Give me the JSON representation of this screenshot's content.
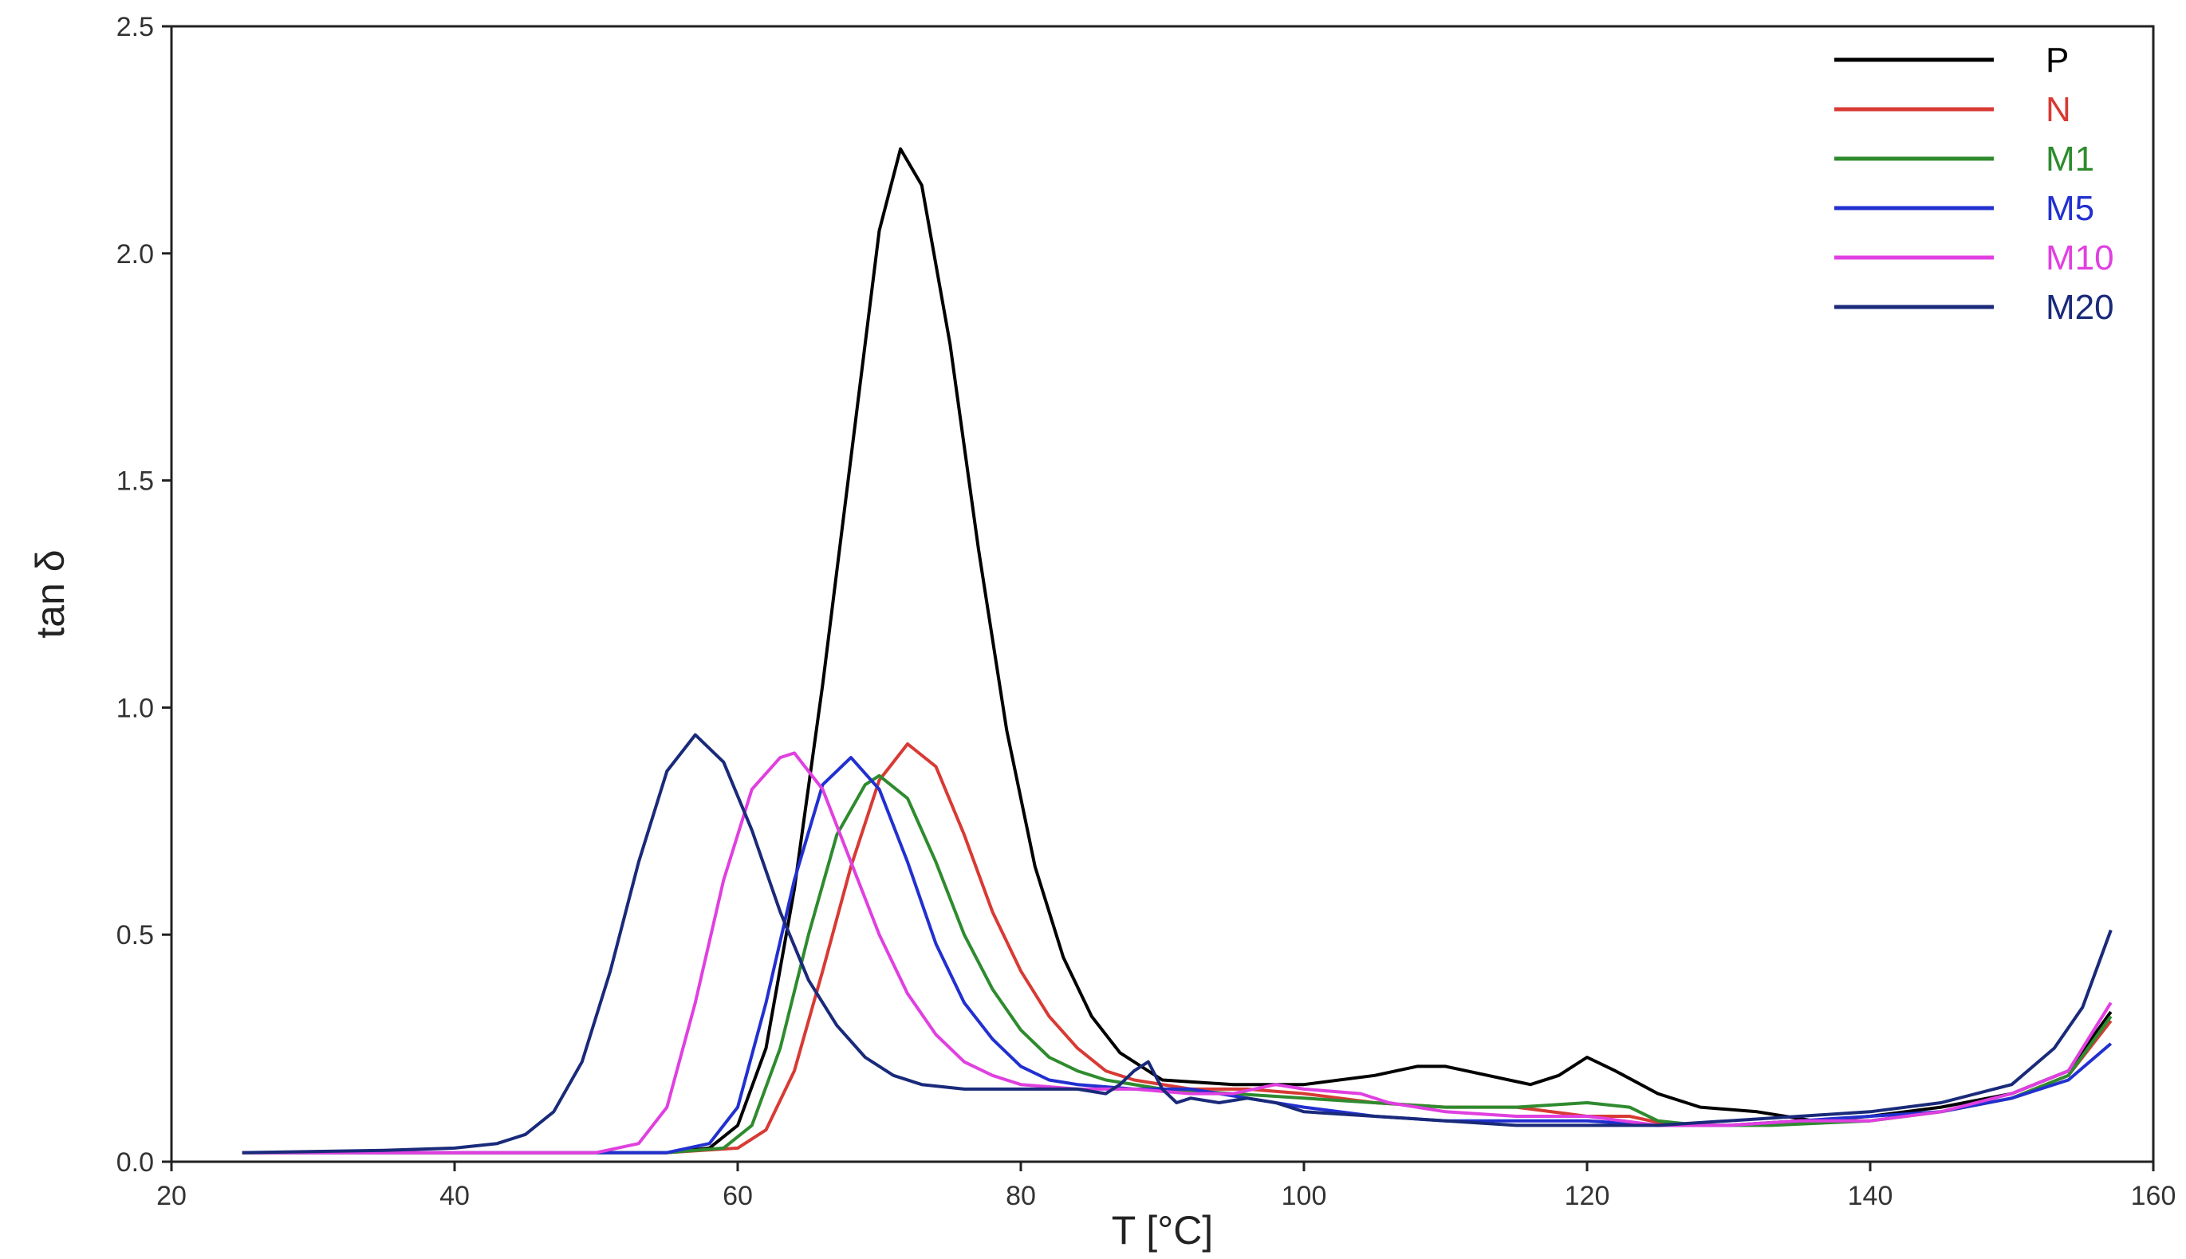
{
  "chart_data": {
    "type": "line",
    "xlabel": "T [°C]",
    "ylabel": "tan δ",
    "xlim": [
      20,
      160
    ],
    "ylim": [
      0,
      2.5
    ],
    "xticks": [
      20,
      40,
      60,
      80,
      100,
      120,
      140,
      160
    ],
    "yticks": [
      0.0,
      0.5,
      1.0,
      1.5,
      2.0,
      2.5
    ],
    "xtick_labels": [
      "20",
      "40",
      "60",
      "80",
      "100",
      "120",
      "140",
      "160"
    ],
    "ytick_labels": [
      "0.0",
      "0.5",
      "1.0",
      "1.5",
      "2.0",
      "2.5"
    ],
    "grid": false,
    "legend_position": "top-right",
    "series": [
      {
        "name": "P",
        "color": "#000000",
        "points": [
          [
            25,
            0.02
          ],
          [
            50,
            0.02
          ],
          [
            55,
            0.02
          ],
          [
            58,
            0.03
          ],
          [
            60,
            0.08
          ],
          [
            62,
            0.25
          ],
          [
            64,
            0.6
          ],
          [
            66,
            1.05
          ],
          [
            68,
            1.55
          ],
          [
            70,
            2.05
          ],
          [
            71.5,
            2.23
          ],
          [
            73,
            2.15
          ],
          [
            75,
            1.8
          ],
          [
            77,
            1.35
          ],
          [
            79,
            0.95
          ],
          [
            81,
            0.65
          ],
          [
            83,
            0.45
          ],
          [
            85,
            0.32
          ],
          [
            87,
            0.24
          ],
          [
            90,
            0.18
          ],
          [
            95,
            0.17
          ],
          [
            100,
            0.17
          ],
          [
            105,
            0.19
          ],
          [
            108,
            0.21
          ],
          [
            110,
            0.21
          ],
          [
            113,
            0.19
          ],
          [
            116,
            0.17
          ],
          [
            118,
            0.19
          ],
          [
            120,
            0.23
          ],
          [
            122,
            0.2
          ],
          [
            125,
            0.15
          ],
          [
            128,
            0.12
          ],
          [
            132,
            0.11
          ],
          [
            136,
            0.09
          ],
          [
            140,
            0.1
          ],
          [
            145,
            0.12
          ],
          [
            150,
            0.15
          ],
          [
            154,
            0.2
          ],
          [
            157,
            0.33
          ]
        ]
      },
      {
        "name": "N",
        "color": "#d83a34",
        "points": [
          [
            25,
            0.02
          ],
          [
            55,
            0.02
          ],
          [
            60,
            0.03
          ],
          [
            62,
            0.07
          ],
          [
            64,
            0.2
          ],
          [
            66,
            0.42
          ],
          [
            68,
            0.65
          ],
          [
            70,
            0.84
          ],
          [
            72,
            0.92
          ],
          [
            74,
            0.87
          ],
          [
            76,
            0.72
          ],
          [
            78,
            0.55
          ],
          [
            80,
            0.42
          ],
          [
            82,
            0.32
          ],
          [
            84,
            0.25
          ],
          [
            86,
            0.2
          ],
          [
            88,
            0.18
          ],
          [
            92,
            0.16
          ],
          [
            96,
            0.16
          ],
          [
            100,
            0.15
          ],
          [
            105,
            0.13
          ],
          [
            110,
            0.12
          ],
          [
            115,
            0.12
          ],
          [
            120,
            0.1
          ],
          [
            123,
            0.1
          ],
          [
            126,
            0.08
          ],
          [
            130,
            0.08
          ],
          [
            135,
            0.09
          ],
          [
            140,
            0.09
          ],
          [
            145,
            0.11
          ],
          [
            150,
            0.14
          ],
          [
            154,
            0.19
          ],
          [
            157,
            0.31
          ]
        ]
      },
      {
        "name": "M1",
        "color": "#2e8b2e",
        "points": [
          [
            25,
            0.02
          ],
          [
            55,
            0.02
          ],
          [
            59,
            0.03
          ],
          [
            61,
            0.08
          ],
          [
            63,
            0.25
          ],
          [
            65,
            0.5
          ],
          [
            67,
            0.72
          ],
          [
            69,
            0.83
          ],
          [
            70,
            0.85
          ],
          [
            72,
            0.8
          ],
          [
            74,
            0.66
          ],
          [
            76,
            0.5
          ],
          [
            78,
            0.38
          ],
          [
            80,
            0.29
          ],
          [
            82,
            0.23
          ],
          [
            84,
            0.2
          ],
          [
            86,
            0.18
          ],
          [
            90,
            0.16
          ],
          [
            95,
            0.15
          ],
          [
            100,
            0.14
          ],
          [
            105,
            0.13
          ],
          [
            110,
            0.12
          ],
          [
            115,
            0.12
          ],
          [
            120,
            0.13
          ],
          [
            123,
            0.12
          ],
          [
            125,
            0.09
          ],
          [
            128,
            0.08
          ],
          [
            133,
            0.08
          ],
          [
            140,
            0.09
          ],
          [
            145,
            0.11
          ],
          [
            150,
            0.14
          ],
          [
            154,
            0.19
          ],
          [
            157,
            0.32
          ]
        ]
      },
      {
        "name": "M5",
        "color": "#2230d0",
        "points": [
          [
            25,
            0.02
          ],
          [
            55,
            0.02
          ],
          [
            58,
            0.04
          ],
          [
            60,
            0.12
          ],
          [
            62,
            0.35
          ],
          [
            64,
            0.62
          ],
          [
            66,
            0.83
          ],
          [
            68,
            0.89
          ],
          [
            70,
            0.82
          ],
          [
            72,
            0.66
          ],
          [
            74,
            0.48
          ],
          [
            76,
            0.35
          ],
          [
            78,
            0.27
          ],
          [
            80,
            0.21
          ],
          [
            82,
            0.18
          ],
          [
            84,
            0.17
          ],
          [
            88,
            0.16
          ],
          [
            92,
            0.16
          ],
          [
            96,
            0.14
          ],
          [
            100,
            0.12
          ],
          [
            105,
            0.1
          ],
          [
            110,
            0.09
          ],
          [
            115,
            0.09
          ],
          [
            120,
            0.09
          ],
          [
            125,
            0.08
          ],
          [
            130,
            0.08
          ],
          [
            135,
            0.09
          ],
          [
            140,
            0.1
          ],
          [
            145,
            0.11
          ],
          [
            150,
            0.14
          ],
          [
            154,
            0.18
          ],
          [
            157,
            0.26
          ]
        ]
      },
      {
        "name": "M10",
        "color": "#e040e0",
        "points": [
          [
            25,
            0.02
          ],
          [
            50,
            0.02
          ],
          [
            53,
            0.04
          ],
          [
            55,
            0.12
          ],
          [
            57,
            0.35
          ],
          [
            59,
            0.62
          ],
          [
            61,
            0.82
          ],
          [
            63,
            0.89
          ],
          [
            64,
            0.9
          ],
          [
            66,
            0.82
          ],
          [
            68,
            0.66
          ],
          [
            70,
            0.5
          ],
          [
            72,
            0.37
          ],
          [
            74,
            0.28
          ],
          [
            76,
            0.22
          ],
          [
            78,
            0.19
          ],
          [
            80,
            0.17
          ],
          [
            84,
            0.16
          ],
          [
            88,
            0.16
          ],
          [
            92,
            0.15
          ],
          [
            95,
            0.15
          ],
          [
            98,
            0.17
          ],
          [
            100,
            0.16
          ],
          [
            104,
            0.15
          ],
          [
            106,
            0.13
          ],
          [
            110,
            0.11
          ],
          [
            115,
            0.1
          ],
          [
            120,
            0.1
          ],
          [
            125,
            0.08
          ],
          [
            130,
            0.08
          ],
          [
            135,
            0.09
          ],
          [
            140,
            0.09
          ],
          [
            145,
            0.11
          ],
          [
            150,
            0.15
          ],
          [
            154,
            0.2
          ],
          [
            157,
            0.35
          ]
        ]
      },
      {
        "name": "M20",
        "color": "#1a2a7a",
        "points": [
          [
            25,
            0.02
          ],
          [
            35,
            0.025
          ],
          [
            40,
            0.03
          ],
          [
            43,
            0.04
          ],
          [
            45,
            0.06
          ],
          [
            47,
            0.11
          ],
          [
            49,
            0.22
          ],
          [
            51,
            0.42
          ],
          [
            53,
            0.66
          ],
          [
            55,
            0.86
          ],
          [
            57,
            0.94
          ],
          [
            59,
            0.88
          ],
          [
            61,
            0.73
          ],
          [
            63,
            0.55
          ],
          [
            65,
            0.4
          ],
          [
            67,
            0.3
          ],
          [
            69,
            0.23
          ],
          [
            71,
            0.19
          ],
          [
            73,
            0.17
          ],
          [
            76,
            0.16
          ],
          [
            80,
            0.16
          ],
          [
            84,
            0.16
          ],
          [
            86,
            0.15
          ],
          [
            87,
            0.17
          ],
          [
            88,
            0.2
          ],
          [
            89,
            0.22
          ],
          [
            90,
            0.16
          ],
          [
            91,
            0.13
          ],
          [
            92,
            0.14
          ],
          [
            94,
            0.13
          ],
          [
            96,
            0.14
          ],
          [
            98,
            0.13
          ],
          [
            100,
            0.11
          ],
          [
            105,
            0.1
          ],
          [
            110,
            0.09
          ],
          [
            115,
            0.08
          ],
          [
            120,
            0.08
          ],
          [
            125,
            0.08
          ],
          [
            130,
            0.09
          ],
          [
            135,
            0.1
          ],
          [
            140,
            0.11
          ],
          [
            145,
            0.13
          ],
          [
            150,
            0.17
          ],
          [
            153,
            0.25
          ],
          [
            155,
            0.34
          ],
          [
            157,
            0.51
          ]
        ]
      }
    ]
  }
}
